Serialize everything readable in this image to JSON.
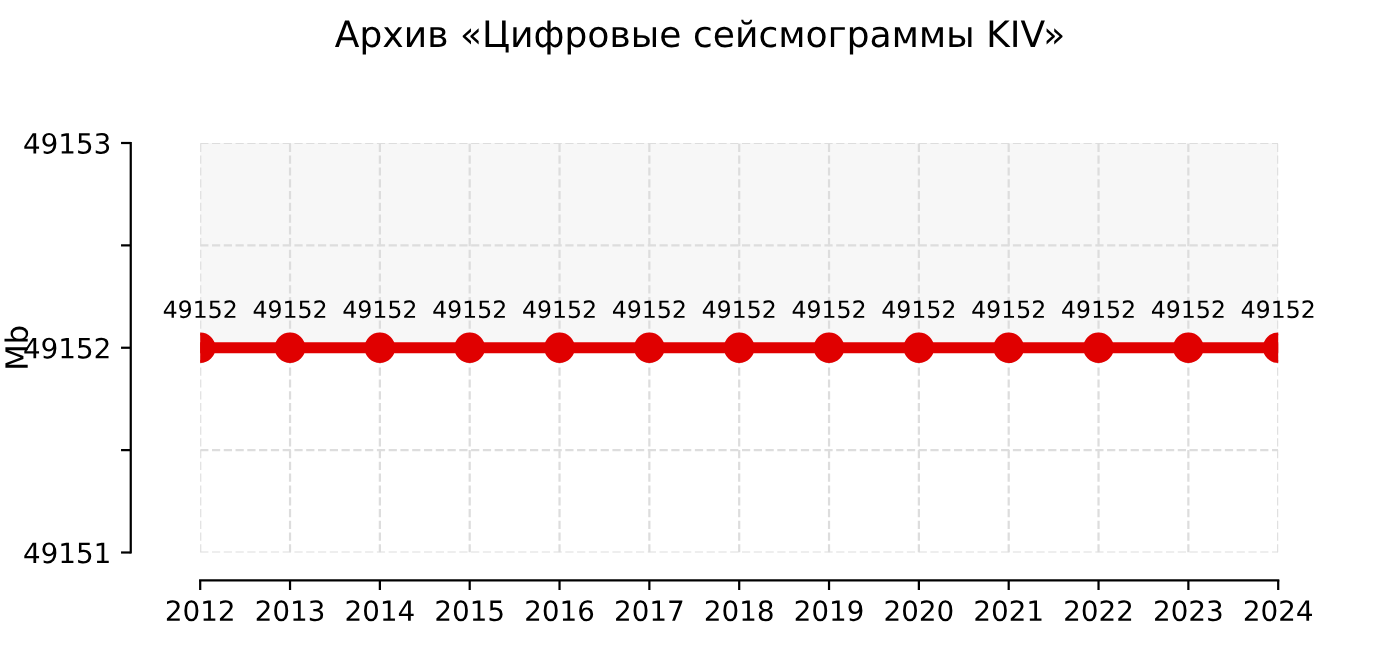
{
  "chart_data": {
    "type": "line",
    "title": "Архив «Цифровые сейсмограммы KIV»",
    "ylabel": "Mb",
    "categories": [
      "2012",
      "2013",
      "2014",
      "2015",
      "2016",
      "2017",
      "2018",
      "2019",
      "2020",
      "2021",
      "2022",
      "2023",
      "2024"
    ],
    "series": [
      {
        "color": "#e00000",
        "values": [
          49152,
          49152,
          49152,
          49152,
          49152,
          49152,
          49152,
          49152,
          49152,
          49152,
          49152,
          49152,
          49152
        ]
      }
    ],
    "ylim": [
      49151,
      49153
    ],
    "yticks": [
      49151,
      {
        "value": 49151.5,
        "label": null
      },
      49152,
      {
        "value": 49152.5,
        "label": null
      },
      49153
    ],
    "bands": [
      {
        "axis": "y",
        "from": 49152,
        "to": 49153,
        "color": "#f7f7f7"
      }
    ],
    "grid": true,
    "marker": "circle",
    "line_style": "solid",
    "data_labels": true
  }
}
